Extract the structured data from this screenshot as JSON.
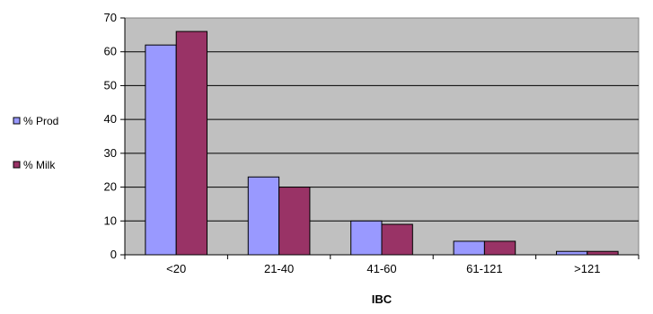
{
  "chart_data": {
    "type": "bar",
    "categories": [
      "<20",
      "21-40",
      "41-60",
      "61-121",
      ">121"
    ],
    "series": [
      {
        "name": "% Prod",
        "values": [
          62,
          23,
          10,
          4,
          1
        ],
        "color": "#9999FF"
      },
      {
        "name": "% Milk",
        "values": [
          66,
          20,
          9,
          4,
          1
        ],
        "color": "#993366"
      }
    ],
    "title": "",
    "xlabel": "IBC",
    "ylabel": "",
    "ylim": [
      0,
      70
    ],
    "yticks": [
      0,
      10,
      20,
      30,
      40,
      50,
      60,
      70
    ],
    "grid": true,
    "legend_position": "left",
    "plot_background": "#C0C0C0"
  }
}
